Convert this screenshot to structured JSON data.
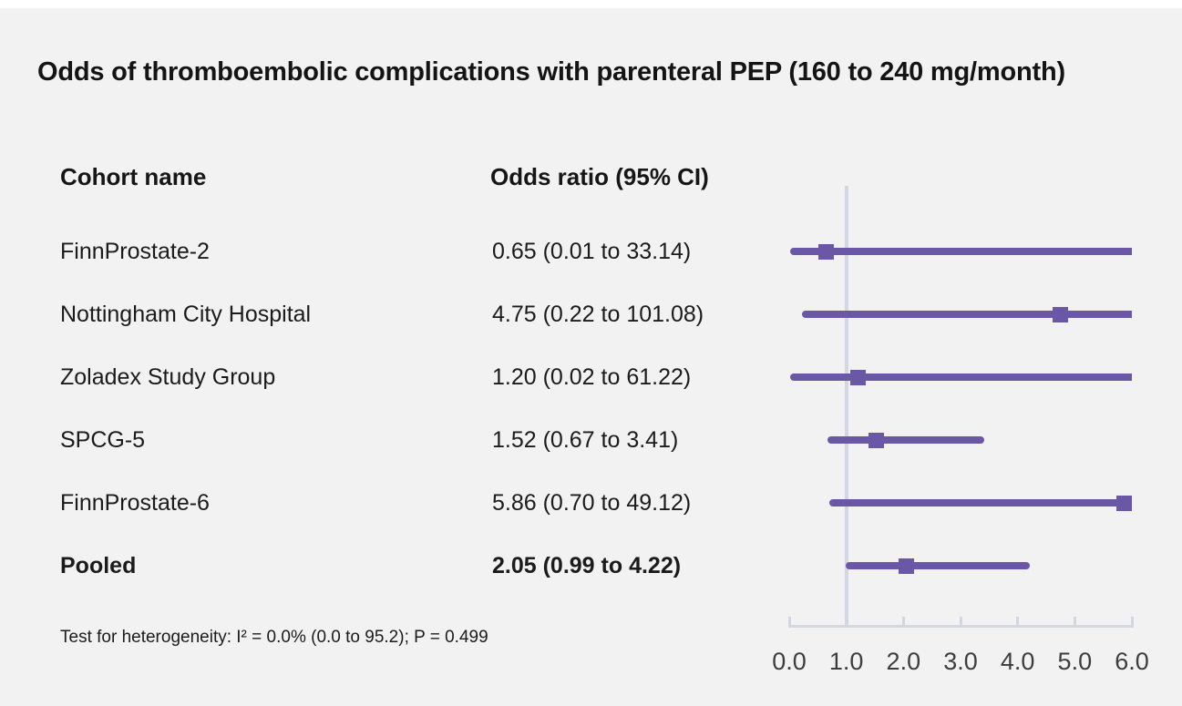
{
  "title": "Odds of thromboembolic complications with parenteral PEP (160 to 240 mg/month)",
  "table": {
    "col1_header": "Cohort name",
    "col2_header": "Odds ratio (95% CI)"
  },
  "footnote": "Test for heterogeneity: I² = 0.0% (0.0 to 95.2); P = 0.499",
  "colors": {
    "accent_purple": "#6a58a6",
    "axis_gray": "#d2d7e0",
    "background": "#f2f2f2"
  },
  "chart_data": {
    "type": "forest",
    "title": "Odds of thromboembolic complications with parenteral PEP (160 to 240 mg/month)",
    "xlabel": "",
    "ylabel": "",
    "xlim": [
      0.0,
      6.0
    ],
    "reference_line": 1.0,
    "x_ticks": [
      0.0,
      1.0,
      2.0,
      3.0,
      4.0,
      5.0,
      6.0
    ],
    "x_tick_labels": [
      "0.0",
      "1.0",
      "2.0",
      "3.0",
      "4.0",
      "5.0",
      "6.0"
    ],
    "legend": "none",
    "grid": "off",
    "rows": [
      {
        "name": "FinnProstate-2",
        "or": 0.65,
        "ci_low": 0.01,
        "ci_high": 33.14,
        "label": "0.65 (0.01 to 33.14)",
        "bold": false
      },
      {
        "name": "Nottingham City Hospital",
        "or": 4.75,
        "ci_low": 0.22,
        "ci_high": 101.08,
        "label": "4.75 (0.22 to 101.08)",
        "bold": false
      },
      {
        "name": "Zoladex Study Group",
        "or": 1.2,
        "ci_low": 0.02,
        "ci_high": 61.22,
        "label": "1.20 (0.02 to 61.22)",
        "bold": false
      },
      {
        "name": "SPCG-5",
        "or": 1.52,
        "ci_low": 0.67,
        "ci_high": 3.41,
        "label": "1.52 (0.67 to 3.41)",
        "bold": false
      },
      {
        "name": "FinnProstate-6",
        "or": 5.86,
        "ci_low": 0.7,
        "ci_high": 49.12,
        "label": "5.86 (0.70 to 49.12)",
        "bold": false
      },
      {
        "name": "Pooled",
        "or": 2.05,
        "ci_low": 0.99,
        "ci_high": 4.22,
        "label": "2.05 (0.99 to 4.22)",
        "bold": true
      }
    ],
    "heterogeneity_note": "Test for heterogeneity: I² = 0.0% (0.0 to 95.2); P = 0.499"
  }
}
